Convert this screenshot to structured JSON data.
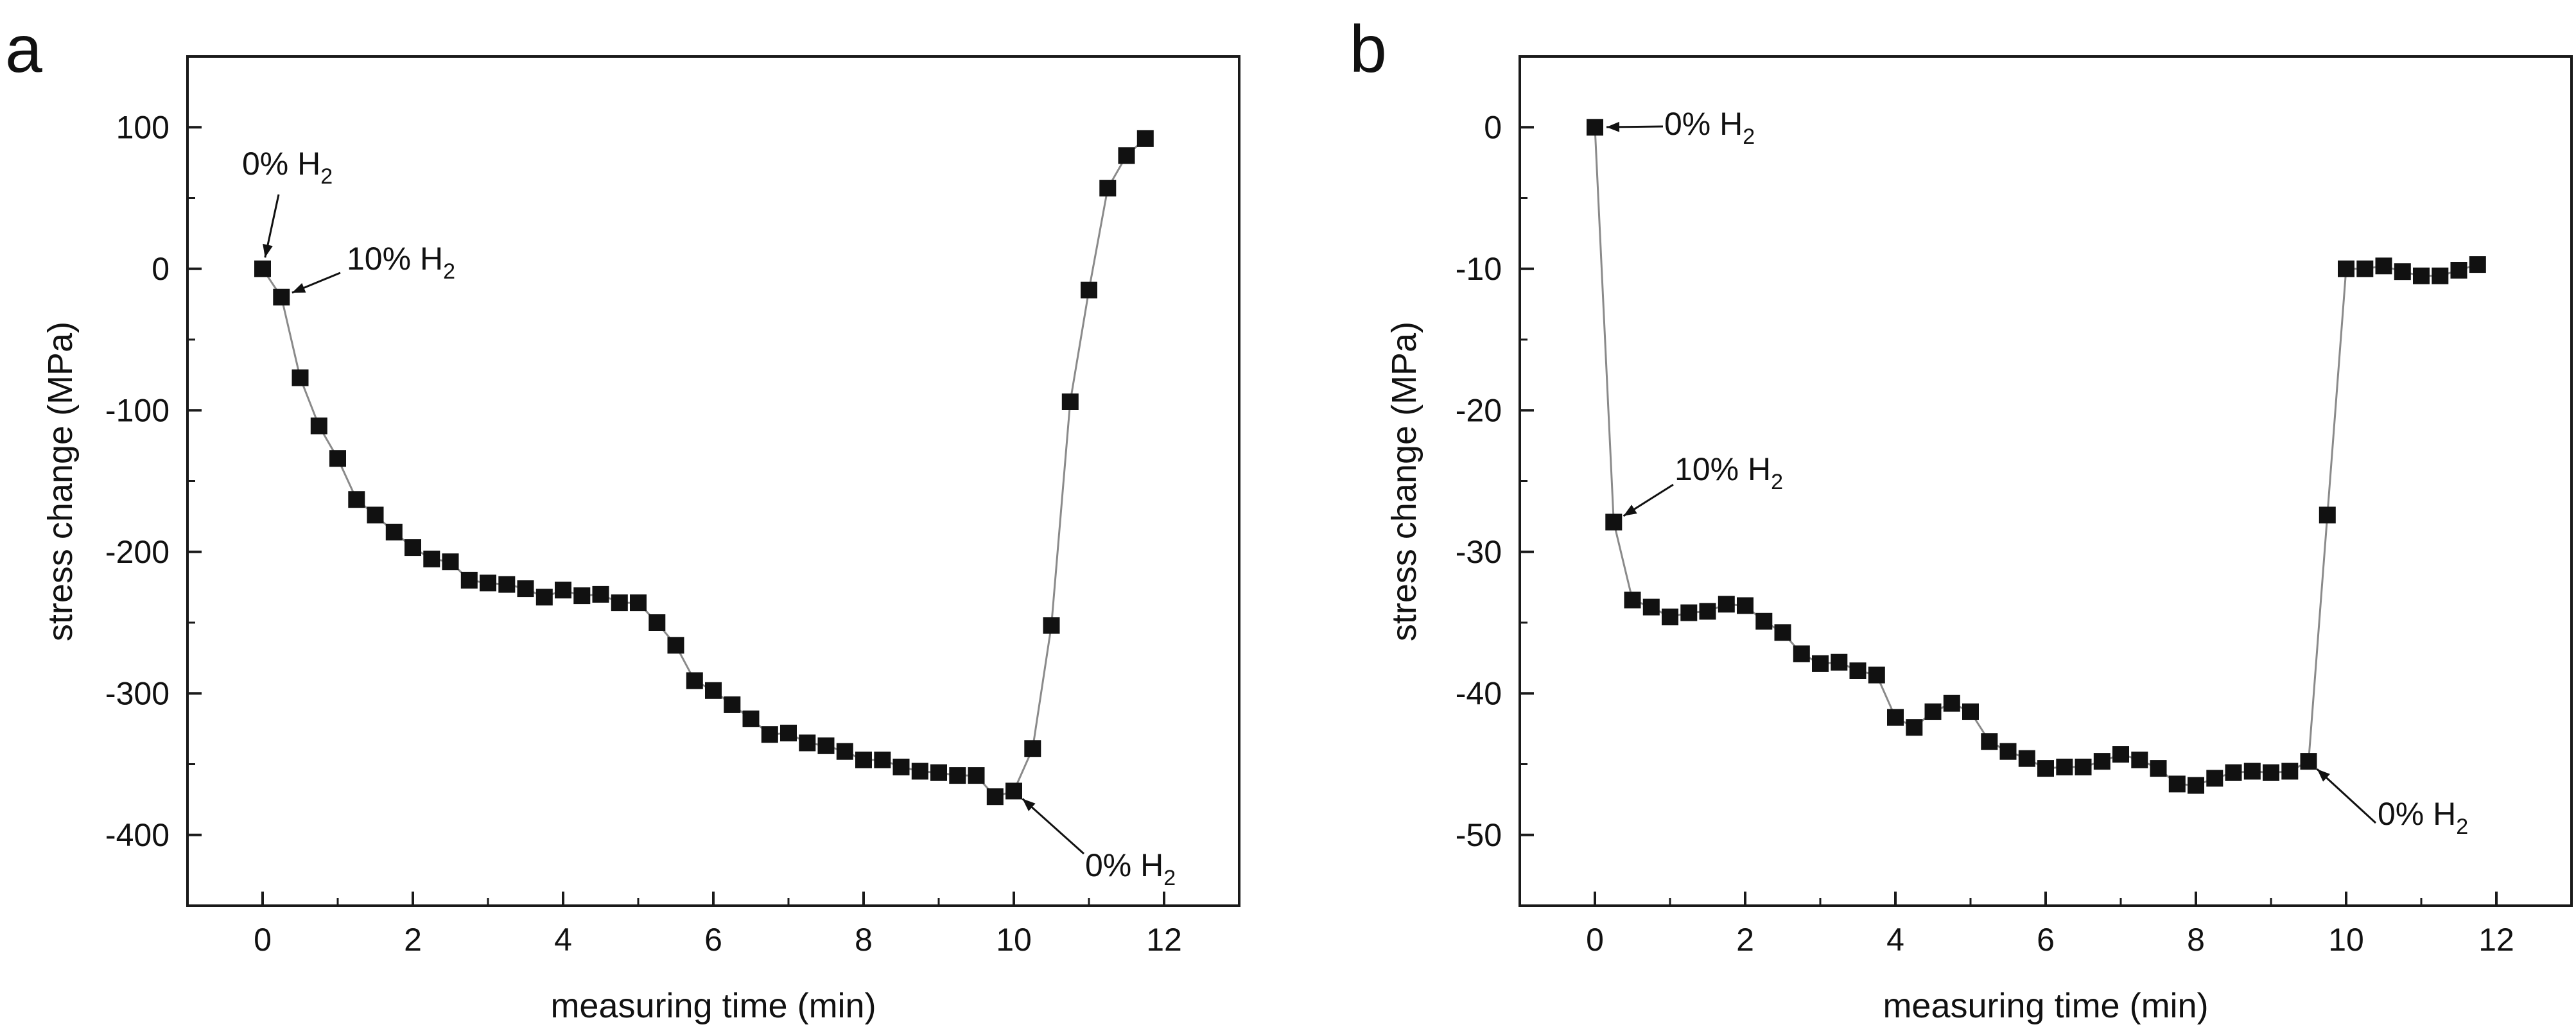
{
  "chart_data": [
    {
      "panel": "a",
      "type": "line",
      "xlabel": "measuring time (min)",
      "ylabel": "stress change (MPa)",
      "xlim": [
        -1,
        13
      ],
      "ylim": [
        -450,
        150
      ],
      "xticks": [
        0,
        2,
        4,
        6,
        8,
        10,
        12
      ],
      "yticks": [
        -400,
        -300,
        -200,
        -100,
        0,
        100
      ],
      "grid": false,
      "series": [
        {
          "name": "stress change",
          "marker": "square",
          "x": [
            0,
            0.25,
            0.5,
            0.75,
            1.0,
            1.25,
            1.5,
            1.75,
            2.0,
            2.25,
            2.5,
            2.75,
            3.0,
            3.25,
            3.5,
            3.75,
            4.0,
            4.25,
            4.5,
            4.75,
            5.0,
            5.25,
            5.5,
            5.75,
            6.0,
            6.25,
            6.5,
            6.75,
            7.0,
            7.25,
            7.5,
            7.75,
            8.0,
            8.25,
            8.5,
            8.75,
            9.0,
            9.25,
            9.5,
            9.75,
            10.0,
            10.25,
            10.5,
            10.75,
            11.0,
            11.25,
            11.5,
            11.75
          ],
          "y": [
            0,
            -20,
            -77,
            -111,
            -134,
            -163,
            -174,
            -186,
            -197,
            -205,
            -207,
            -220,
            -222,
            -223,
            -226,
            -232,
            -227,
            -231,
            -230,
            -236,
            -236,
            -250,
            -266,
            -291,
            -298,
            -308,
            -318,
            -329,
            -328,
            -335,
            -337,
            -341,
            -347,
            -347,
            -352,
            -355,
            -356,
            -358,
            -358,
            -373,
            -369,
            -339,
            -252,
            -94,
            -15,
            57,
            80,
            92
          ]
        }
      ],
      "annotations": [
        {
          "text": "0% H",
          "sub": "2",
          "x": 0,
          "y": 0
        },
        {
          "text": "10% H",
          "sub": "2",
          "x": 0.25,
          "y": -20
        },
        {
          "text": "0% H",
          "sub": "2",
          "x": 10.0,
          "y": -369
        }
      ]
    },
    {
      "panel": "b",
      "type": "line",
      "xlabel": "measuring time (min)",
      "ylabel": "stress change (MPa)",
      "xlim": [
        -1,
        13
      ],
      "ylim": [
        -55,
        5
      ],
      "xticks": [
        0,
        2,
        4,
        6,
        8,
        10,
        12
      ],
      "yticks": [
        -50,
        -40,
        -30,
        -20,
        -10,
        0
      ],
      "grid": false,
      "series": [
        {
          "name": "stress change",
          "marker": "square",
          "x": [
            0,
            0.25,
            0.5,
            0.75,
            1.0,
            1.25,
            1.5,
            1.75,
            2.0,
            2.25,
            2.5,
            2.75,
            3.0,
            3.25,
            3.5,
            3.75,
            4.0,
            4.25,
            4.5,
            4.75,
            5.0,
            5.25,
            5.5,
            5.75,
            6.0,
            6.25,
            6.5,
            6.75,
            7.0,
            7.25,
            7.5,
            7.75,
            8.0,
            8.25,
            8.5,
            8.75,
            9.0,
            9.25,
            9.5,
            9.75,
            10.0,
            10.25,
            10.5,
            10.75,
            11.0,
            11.25,
            11.5,
            11.75
          ],
          "y": [
            0,
            -27.9,
            -33.4,
            -33.9,
            -34.6,
            -34.3,
            -34.2,
            -33.7,
            -33.8,
            -34.9,
            -35.7,
            -37.2,
            -37.9,
            -37.8,
            -38.4,
            -38.7,
            -41.7,
            -42.4,
            -41.3,
            -40.7,
            -41.3,
            -43.4,
            -44.1,
            -44.6,
            -45.3,
            -45.2,
            -45.2,
            -44.8,
            -44.3,
            -44.7,
            -45.3,
            -46.4,
            -46.5,
            -46.0,
            -45.6,
            -45.5,
            -45.6,
            -45.5,
            -44.8,
            -27.4,
            -10.0,
            -10.0,
            -9.8,
            -10.2,
            -10.5,
            -10.5,
            -10.1,
            -9.7
          ]
        }
      ],
      "annotations": [
        {
          "text": "0% H",
          "sub": "2",
          "x": 0,
          "y": 0
        },
        {
          "text": "10% H",
          "sub": "2",
          "x": 0.25,
          "y": -27.9
        },
        {
          "text": "0% H",
          "sub": "2",
          "x": 9.5,
          "y": -44.8
        }
      ]
    }
  ],
  "panels": [
    {
      "letter": "a"
    },
    {
      "letter": "b"
    }
  ]
}
